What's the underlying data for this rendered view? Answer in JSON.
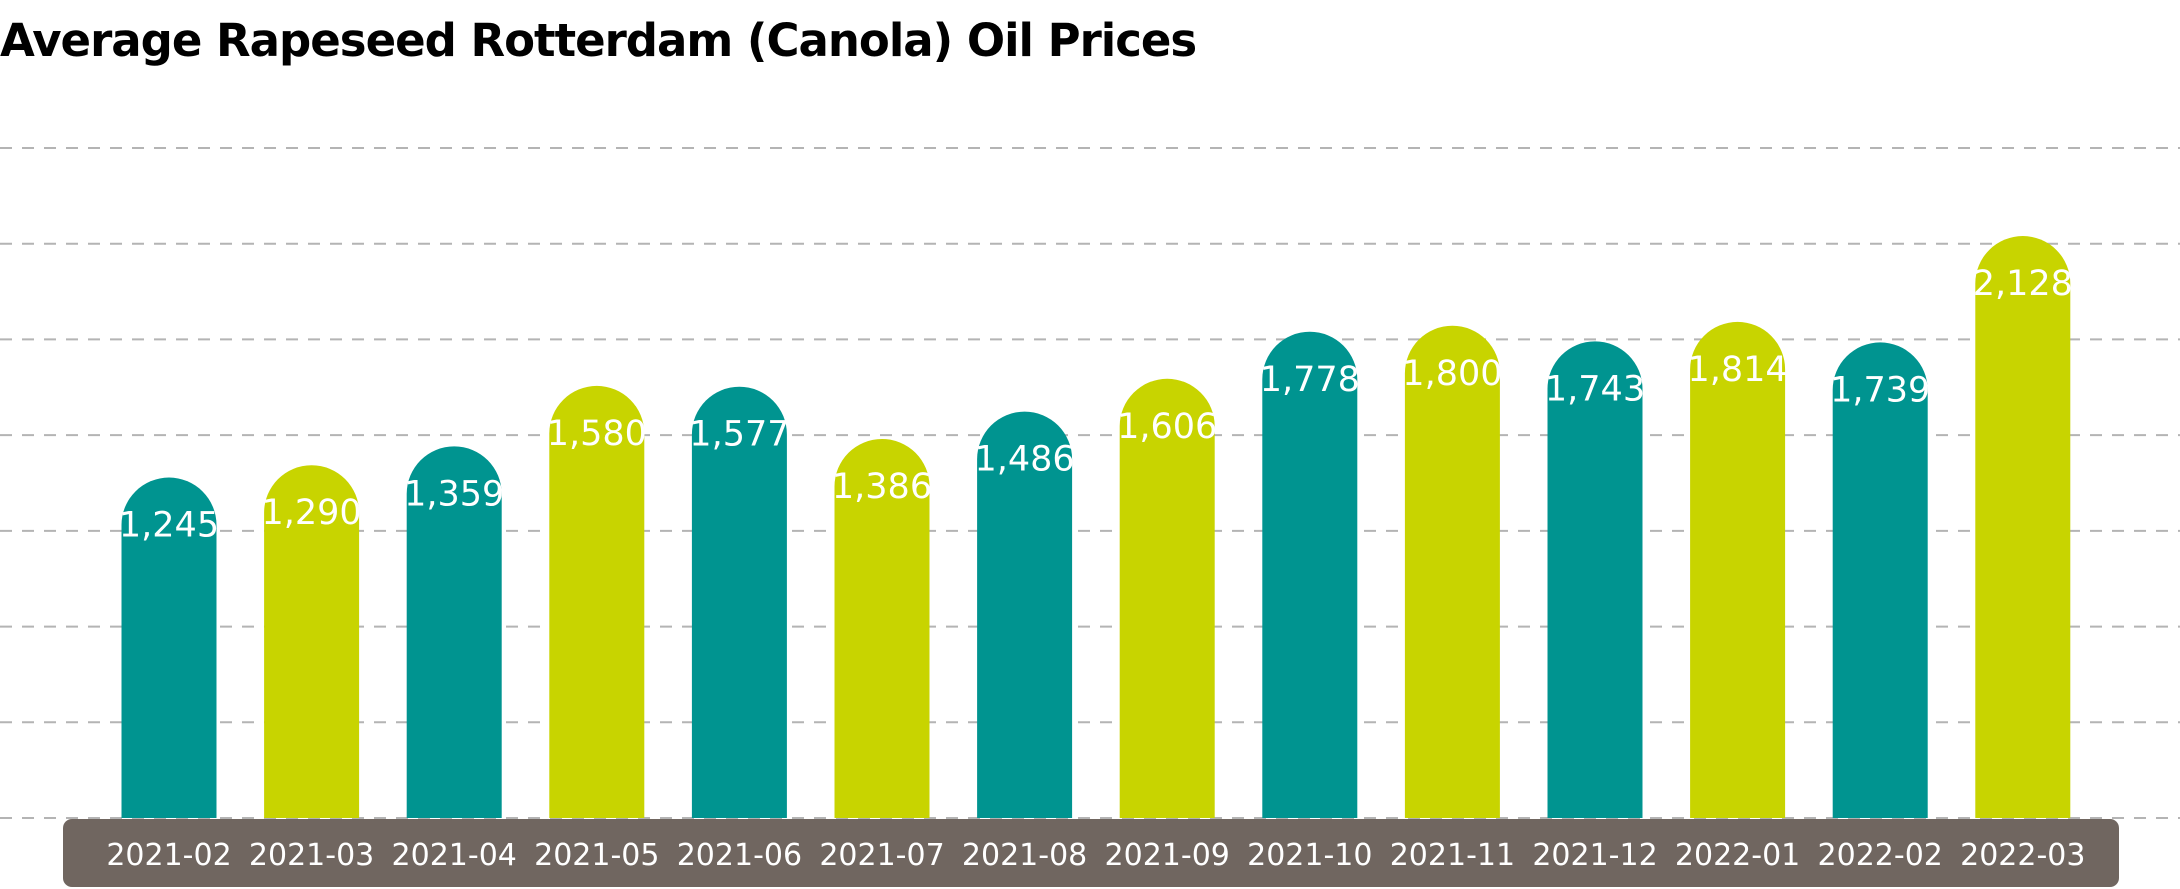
{
  "chart_data": {
    "type": "bar",
    "title": "Average Rapeseed Rotterdam (Canola) Oil Prices",
    "xlabel": "",
    "ylabel": "",
    "categories": [
      "2021-02",
      "2021-03",
      "2021-04",
      "2021-05",
      "2021-06",
      "2021-07",
      "2021-08",
      "2021-09",
      "2021-10",
      "2021-11",
      "2021-12",
      "2022-01",
      "2022-02",
      "2022-03"
    ],
    "values": [
      1245,
      1290,
      1359,
      1580,
      1577,
      1386,
      1486,
      1606,
      1778,
      1800,
      1743,
      1814,
      1739,
      2128
    ],
    "value_labels": [
      "1,245",
      "1,290",
      "1,359",
      "1,580",
      "1,577",
      "1,386",
      "1,486",
      "1,606",
      "1,778",
      "1,800",
      "1,743",
      "1,814",
      "1,739",
      "2,128"
    ],
    "ylim": [
      0,
      2450
    ],
    "grid": "horizontal dashed",
    "legend": "none",
    "colors": {
      "teal": "#009490",
      "lime": "#c8d400",
      "axis_band": "#706660",
      "grid": "#b4b4b4",
      "label": "#ffffff"
    },
    "bar_colors": [
      "teal",
      "lime",
      "teal",
      "lime",
      "teal",
      "lime",
      "teal",
      "lime",
      "teal",
      "lime",
      "teal",
      "lime",
      "teal",
      "lime"
    ]
  }
}
